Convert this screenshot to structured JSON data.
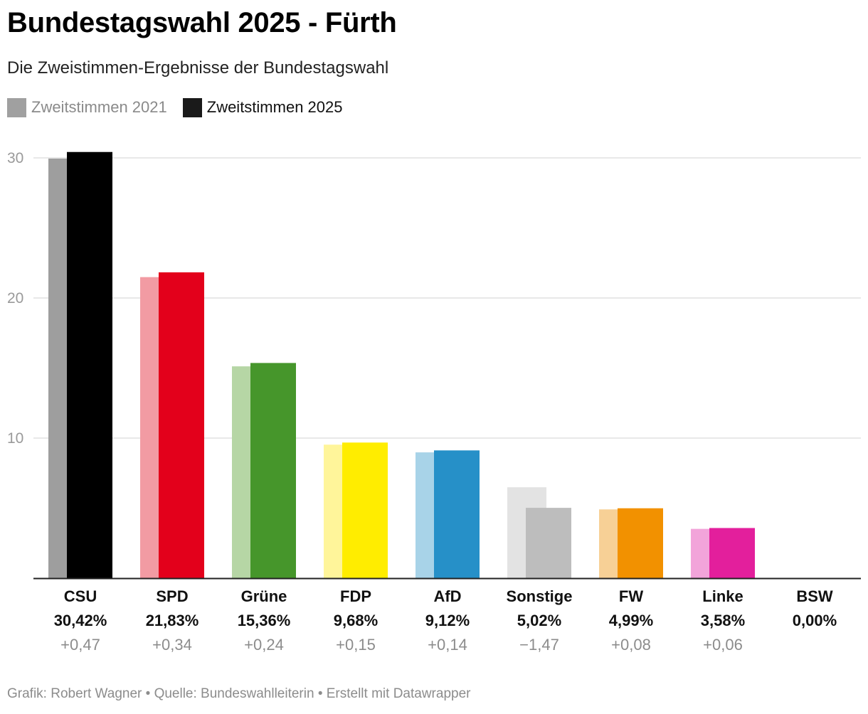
{
  "header": {
    "title": "Bundestagswahl 2025 - Fürth",
    "subtitle": "Die Zweistimmen-Ergebnisse der Bundestagswahl"
  },
  "legend": {
    "items": [
      {
        "label": "Zweitstimmen 2021",
        "color": "#a0a0a0"
      },
      {
        "label": "Zweitstimmen 2025",
        "color": "#1a1a1a"
      }
    ]
  },
  "footer": {
    "text": "Grafik: Robert Wagner • Quelle: Bundeswahlleiterin • Erstellt mit Datawrapper"
  },
  "chart_data": {
    "type": "bar",
    "categories": [
      "CSU",
      "SPD",
      "Grüne",
      "FDP",
      "AfD",
      "Sonstige",
      "FW",
      "Linke",
      "BSW"
    ],
    "series": [
      {
        "name": "Zweitstimmen 2021",
        "values": [
          29.95,
          21.49,
          15.12,
          9.53,
          8.98,
          6.49,
          4.91,
          3.52,
          0
        ]
      },
      {
        "name": "Zweitstimmen 2025",
        "values": [
          30.42,
          21.83,
          15.36,
          9.68,
          9.12,
          5.02,
          4.99,
          3.58,
          0
        ]
      }
    ],
    "value_labels": [
      "30,42%",
      "21,83%",
      "15,36%",
      "9,68%",
      "9,12%",
      "5,02%",
      "4,99%",
      "3,58%",
      "0,00%"
    ],
    "diff_labels": [
      "+0,47",
      "+0,34",
      "+0,24",
      "+0,15",
      "+0,14",
      "−1,47",
      "+0,08",
      "+0,06",
      ""
    ],
    "colors_2021": [
      "#9e9e9e",
      "#f29ba3",
      "#b6d6a5",
      "#fff59a",
      "#a8d3e8",
      "#e3e3e3",
      "#f7d096",
      "#f2a4da",
      "#cccccc"
    ],
    "colors_2025": [
      "#000000",
      "#e3001b",
      "#46962b",
      "#ffed00",
      "#2690c8",
      "#bdbdbd",
      "#f29100",
      "#e31f9c",
      "#7b1fa2"
    ],
    "yticks": [
      10,
      20,
      30
    ],
    "ytick_labels": [
      "10",
      "20",
      "30"
    ],
    "ylim": [
      0,
      30
    ],
    "grid": true,
    "legend_position": "top-left"
  }
}
